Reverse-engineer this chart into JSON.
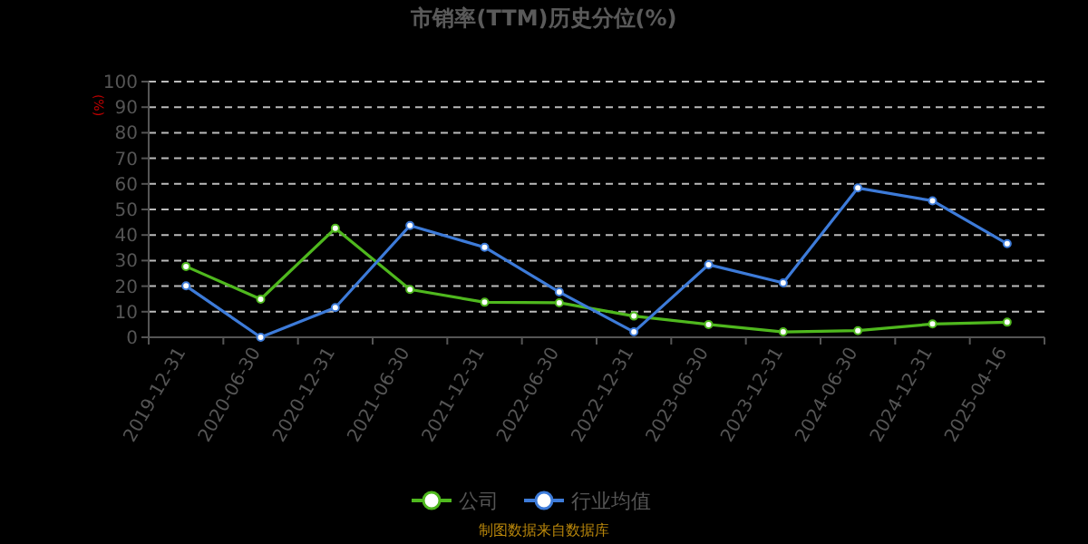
{
  "chart_data": {
    "type": "line",
    "title": "市销率(TTM)历史分位(%)",
    "ylabel": "(%)",
    "categories": [
      "2019-12-31",
      "2020-06-30",
      "2020-12-31",
      "2021-06-30",
      "2021-12-31",
      "2022-06-30",
      "2022-12-31",
      "2023-06-30",
      "2023-12-31",
      "2024-06-30",
      "2024-12-31",
      "2025-04-16"
    ],
    "series": [
      {
        "name": "公司",
        "color": "#4fb81e",
        "values": [
          27.7,
          14.9,
          42.6,
          18.7,
          13.7,
          13.5,
          8.3,
          5.0,
          2.1,
          2.6,
          5.2,
          5.9
        ]
      },
      {
        "name": "行业均值",
        "color": "#3d7bd9",
        "values": [
          20.1,
          0,
          11.6,
          43.7,
          35.2,
          17.7,
          2.1,
          28.4,
          21.3,
          58.4,
          53.4,
          36.6
        ]
      }
    ],
    "ylim": [
      0,
      100
    ],
    "yticks": [
      0,
      10,
      20,
      30,
      40,
      50,
      60,
      70,
      80,
      90,
      100
    ],
    "grid": "y",
    "legend": "bottom",
    "marker": "circle",
    "annotations": [
      "制图数据来自数据库"
    ]
  }
}
